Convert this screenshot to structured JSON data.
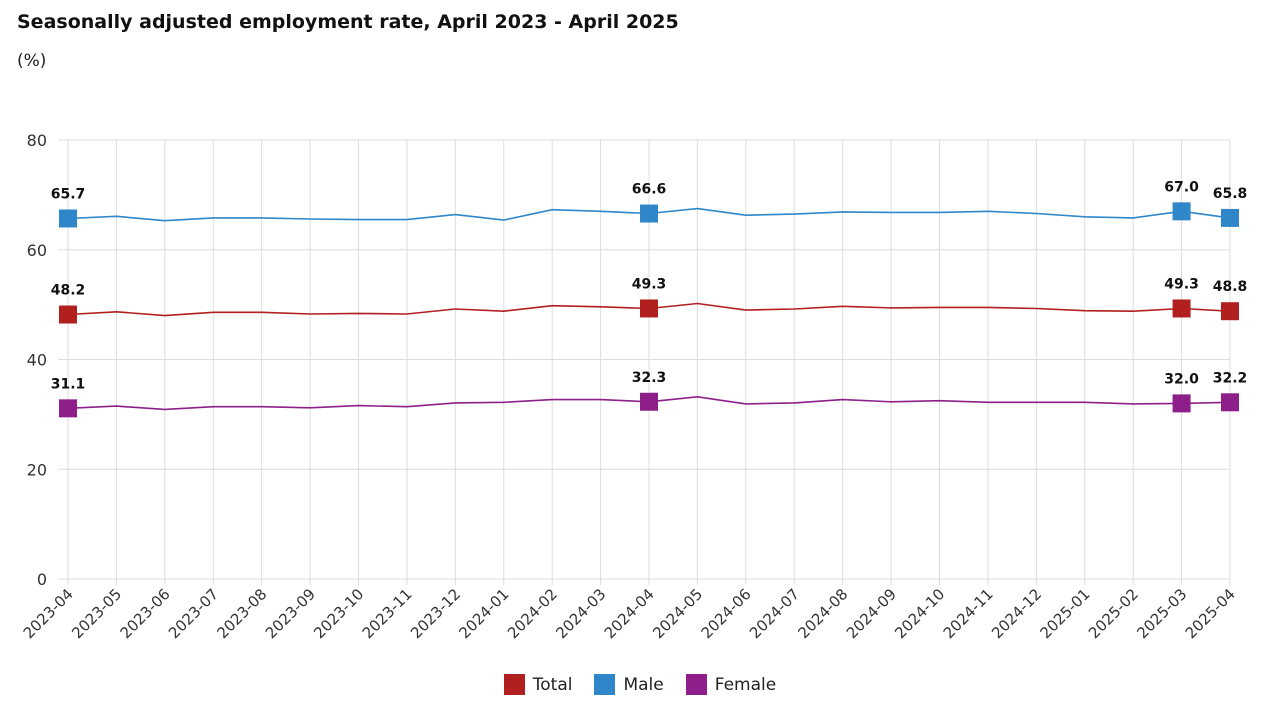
{
  "chart_data": {
    "type": "line",
    "title": "Seasonally adjusted employment rate, April 2023 - April 2025",
    "subtitle": "(%)",
    "xlabel": "",
    "ylabel": "",
    "ylim": [
      0,
      80
    ],
    "yticks": [
      0,
      20,
      40,
      60,
      80
    ],
    "grid": true,
    "legend_position": "bottom",
    "categories": [
      "2023-04",
      "2023-05",
      "2023-06",
      "2023-07",
      "2023-08",
      "2023-09",
      "2023-10",
      "2023-11",
      "2023-12",
      "2024-01",
      "2024-02",
      "2024-03",
      "2024-04",
      "2024-05",
      "2024-06",
      "2024-07",
      "2024-08",
      "2024-09",
      "2024-10",
      "2024-11",
      "2024-12",
      "2025-01",
      "2025-02",
      "2025-03",
      "2025-04"
    ],
    "series": [
      {
        "name": "Total",
        "color": "#b21f1f",
        "values": [
          48.2,
          48.7,
          48.0,
          48.6,
          48.6,
          48.3,
          48.4,
          48.3,
          49.2,
          48.8,
          49.8,
          49.6,
          49.3,
          50.2,
          49.0,
          49.2,
          49.7,
          49.4,
          49.5,
          49.5,
          49.3,
          48.9,
          48.8,
          49.3,
          48.8
        ]
      },
      {
        "name": "Male",
        "color": "#2f86c9",
        "values": [
          65.7,
          66.1,
          65.3,
          65.8,
          65.8,
          65.6,
          65.5,
          65.5,
          66.4,
          65.4,
          67.3,
          67.0,
          66.6,
          67.5,
          66.3,
          66.5,
          66.9,
          66.8,
          66.8,
          67.0,
          66.6,
          66.0,
          65.8,
          67.0,
          65.8
        ]
      },
      {
        "name": "Female",
        "color": "#8e1f8a",
        "values": [
          31.1,
          31.5,
          30.9,
          31.4,
          31.4,
          31.2,
          31.6,
          31.4,
          32.1,
          32.2,
          32.7,
          32.7,
          32.3,
          33.2,
          31.9,
          32.1,
          32.7,
          32.3,
          32.5,
          32.2,
          32.2,
          32.2,
          31.9,
          32.0,
          32.2
        ]
      }
    ],
    "data_labels": [
      {
        "series": 0,
        "index": 0,
        "text": "48.2"
      },
      {
        "series": 0,
        "index": 12,
        "text": "49.3"
      },
      {
        "series": 0,
        "index": 23,
        "text": "49.3"
      },
      {
        "series": 0,
        "index": 24,
        "text": "48.8"
      },
      {
        "series": 1,
        "index": 0,
        "text": "65.7"
      },
      {
        "series": 1,
        "index": 12,
        "text": "66.6"
      },
      {
        "series": 1,
        "index": 23,
        "text": "67.0"
      },
      {
        "series": 1,
        "index": 24,
        "text": "65.8"
      },
      {
        "series": 2,
        "index": 0,
        "text": "31.1"
      },
      {
        "series": 2,
        "index": 12,
        "text": "32.3"
      },
      {
        "series": 2,
        "index": 23,
        "text": "32.0"
      },
      {
        "series": 2,
        "index": 24,
        "text": "32.2"
      }
    ]
  }
}
